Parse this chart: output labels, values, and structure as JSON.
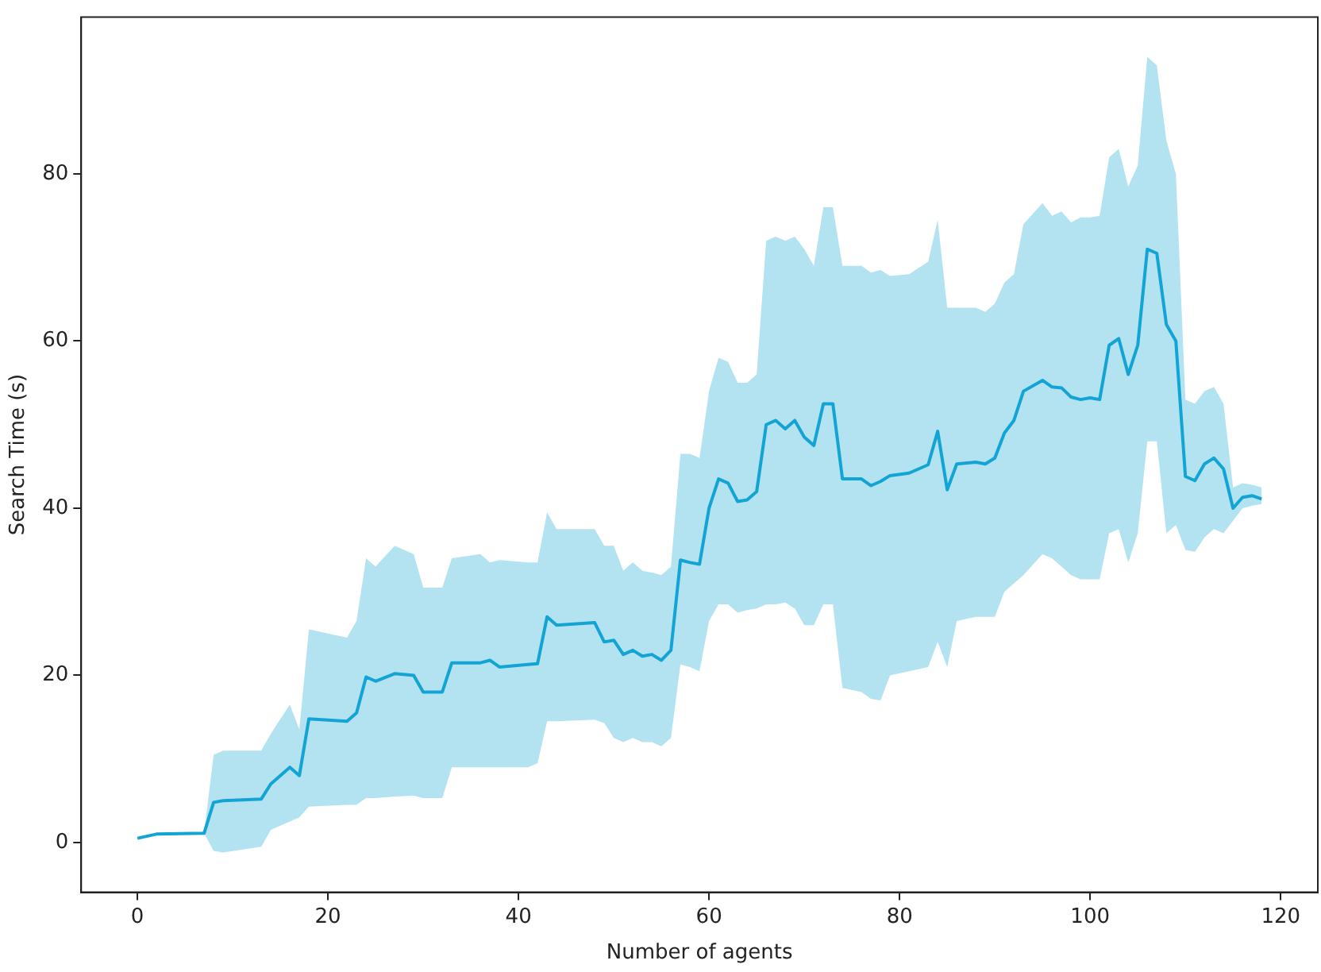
{
  "chart_data": {
    "type": "line",
    "xlabel": "Number of agents",
    "ylabel": "Search Time (s)",
    "x": [
      0,
      2,
      7,
      8,
      9,
      13,
      14,
      16,
      17,
      18,
      22,
      23,
      24,
      25,
      27,
      29,
      30,
      32,
      33,
      36,
      37,
      38,
      41,
      42,
      43,
      44,
      48,
      49,
      50,
      51,
      52,
      53,
      54,
      55,
      56,
      57,
      58,
      59,
      60,
      61,
      62,
      63,
      64,
      65,
      66,
      67,
      68,
      69,
      70,
      71,
      72,
      73,
      74,
      76,
      77,
      78,
      79,
      81,
      83,
      84,
      85,
      86,
      88,
      89,
      90,
      91,
      92,
      93,
      95,
      96,
      97,
      98,
      99,
      100,
      101,
      102,
      103,
      104,
      105,
      106,
      107,
      108,
      109,
      110,
      111,
      112,
      113,
      114,
      115,
      116,
      117,
      118
    ],
    "series": [
      {
        "color": "#13a4d4",
        "values": [
          0.5,
          1,
          1.1,
          4.8,
          5,
          5.2,
          7,
          9,
          8,
          14.8,
          14.5,
          15.5,
          19.8,
          19.3,
          20.2,
          20,
          18,
          18,
          21.5,
          21.5,
          21.8,
          21,
          21.3,
          21.4,
          27,
          26,
          26.3,
          24,
          24.2,
          22.5,
          23,
          22.3,
          22.5,
          21.8,
          23,
          33.8,
          33.5,
          33.3,
          40,
          43.5,
          43,
          40.8,
          41,
          42,
          50,
          50.5,
          49.5,
          50.5,
          48.5,
          47.5,
          52.5,
          52.5,
          43.5,
          43.5,
          42.7,
          43.2,
          43.9,
          44.2,
          45.2,
          49.2,
          42.2,
          45.3,
          45.5,
          45.3,
          46,
          49,
          50.5,
          54,
          55.3,
          54.5,
          54.4,
          53.3,
          53,
          53.2,
          53,
          59.5,
          60.3,
          56,
          59.5,
          71,
          70.5,
          62,
          60,
          43.8,
          43.3,
          45.3,
          46,
          44.7,
          40,
          41.3,
          41.5,
          41.1
        ],
        "lower": [
          0.5,
          1,
          1.1,
          -1,
          -1.2,
          -0.5,
          1.5,
          2.5,
          3,
          4.3,
          4.5,
          4.5,
          5.3,
          5.3,
          5.5,
          5.6,
          5.3,
          5.3,
          9,
          9,
          9,
          9,
          9,
          9.5,
          14.5,
          14.5,
          14.7,
          14.3,
          12.5,
          12,
          12.5,
          12,
          12,
          11.5,
          12.5,
          21.3,
          21,
          20.5,
          26.5,
          28.5,
          28.5,
          27.5,
          27.8,
          28,
          28.5,
          28.5,
          28.7,
          28,
          26,
          26,
          28.5,
          28.5,
          18.5,
          18,
          17.2,
          17,
          20,
          20.5,
          21,
          24,
          21,
          26.5,
          27,
          27,
          27,
          30,
          31,
          32,
          34.5,
          34,
          33,
          32,
          31.5,
          31.5,
          31.5,
          37,
          37.5,
          33.5,
          37,
          48,
          48,
          37,
          38,
          35,
          34.8,
          36.5,
          37.5,
          37,
          38.5,
          40,
          40.3,
          40.5
        ],
        "upper": [
          0.5,
          1,
          1.1,
          10.5,
          11,
          11,
          13,
          16.5,
          13.5,
          25.5,
          24.5,
          26.5,
          34,
          33,
          35.5,
          34.5,
          30.5,
          30.5,
          34,
          34.5,
          33.5,
          33.8,
          33.5,
          33.5,
          39.5,
          37.5,
          37.5,
          35.5,
          35.5,
          32.5,
          33.5,
          32.5,
          32.3,
          32,
          33,
          46.5,
          46.5,
          46,
          54,
          58,
          57.5,
          55,
          55,
          56,
          72,
          72.5,
          72,
          72.5,
          71,
          69,
          76,
          76,
          69,
          69,
          68.2,
          68.5,
          67.8,
          68,
          69.5,
          74.5,
          64,
          64,
          64,
          63.5,
          64.5,
          67,
          68,
          74,
          76.5,
          75,
          75.5,
          74.2,
          74.8,
          74.8,
          75,
          82,
          83,
          78.5,
          81,
          94,
          93,
          84,
          80,
          53,
          52.5,
          54,
          54.5,
          52.5,
          42.5,
          43,
          42.8,
          42.5
        ]
      }
    ],
    "xlim": [
      -5.9,
      123.9
    ],
    "ylim": [
      -5.96,
      98.76
    ],
    "xticks": [
      0,
      20,
      40,
      60,
      80,
      100,
      120
    ],
    "yticks": [
      0,
      20,
      40,
      60,
      80
    ]
  }
}
